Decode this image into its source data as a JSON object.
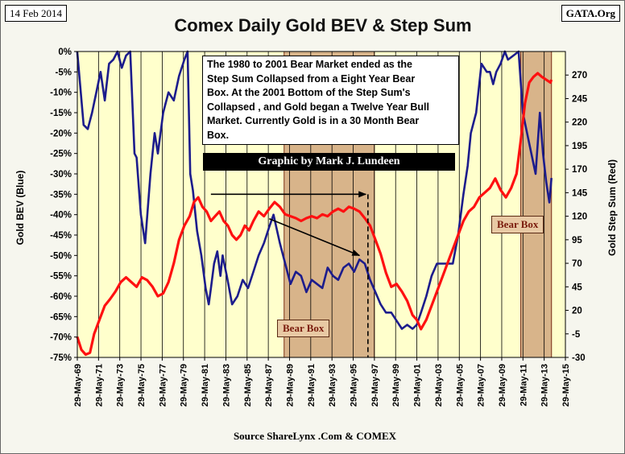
{
  "header": {
    "date": "14 Feb 2014",
    "site": "GATA.Org",
    "title": "Comex Daily Gold BEV &  Step Sum"
  },
  "footer": {
    "source": "Source ShareLynx .Com & COMEX"
  },
  "annotations": {
    "note_lines": [
      "The 1980 to 2001 Bear Market ended as the",
      "Step Sum Collapsed from a Eight Year Bear",
      "Box.  At the  2001 Bottom of the Step Sum's",
      "Collapsed , and Gold began a Twelve Year Bull",
      "Market.  Currently Gold is in a  30 Month Bear",
      "Box."
    ],
    "credit": "Graphic by Mark J. Lundeen",
    "bear_box_1": "Bear Box",
    "bear_box_2": "Bear Box"
  },
  "colors": {
    "bev_line": "#1c1c8c",
    "step_sum_line": "#ff1010",
    "plot_background": "#ffffcc",
    "bear_box_fill": "#d8b48a",
    "bear_box_border": "#7a2e16"
  },
  "chart_data": {
    "type": "line",
    "title": "Comex Daily Gold BEV &  Step Sum",
    "xlabel": "",
    "ylabel": "Gold BEV   (Blue)",
    "y2label": "Gold Step Sum   (Red)",
    "x_ticks": [
      "29-May-69",
      "29-May-71",
      "29-May-73",
      "29-May-75",
      "29-May-77",
      "29-May-79",
      "29-May-81",
      "29-May-83",
      "29-May-85",
      "29-May-87",
      "29-May-89",
      "29-May-91",
      "29-May-93",
      "29-May-95",
      "29-May-97",
      "29-May-99",
      "29-May-01",
      "29-May-03",
      "29-May-05",
      "29-May-07",
      "29-May-09",
      "29-May-11",
      "29-May-13",
      "29-May-15"
    ],
    "xlim": [
      1969.41,
      2015.41
    ],
    "ylim": [
      -75,
      0
    ],
    "y_ticks": [
      "0%",
      "-5%",
      "-10%",
      "-15%",
      "-20%",
      "-25%",
      "-30%",
      "-35%",
      "-40%",
      "-45%",
      "-50%",
      "-55%",
      "-60%",
      "-65%",
      "-70%",
      "-75%"
    ],
    "y2lim": [
      -30,
      295
    ],
    "y2_ticks": [
      270,
      245,
      220,
      195,
      170,
      145,
      120,
      95,
      70,
      45,
      20,
      -5,
      -30
    ],
    "grid": {
      "vertical": true,
      "horizontal": false
    },
    "shaded_regions": [
      {
        "label": "Bear Box",
        "x": [
          1988.9,
          1997.4
        ]
      },
      {
        "label": "Bear Box",
        "x": [
          2011.2,
          2014.1
        ]
      }
    ],
    "reference_lines": [
      {
        "style": "dashed",
        "x": 1996.8
      }
    ],
    "arrows": [
      {
        "from": [
          1982.0,
          -35
        ],
        "to": [
          1996.6,
          -35
        ]
      },
      {
        "from": [
          1987.5,
          -41
        ],
        "to": [
          1996.0,
          -50
        ]
      }
    ],
    "series": [
      {
        "name": "Gold BEV (Blue)",
        "axis": "left",
        "x": [
          1969.4,
          1970.0,
          1970.4,
          1970.8,
          1971.2,
          1971.6,
          1972.0,
          1972.4,
          1972.8,
          1973.2,
          1973.6,
          1974.0,
          1974.4,
          1974.8,
          1975.0,
          1975.4,
          1975.8,
          1976.3,
          1976.7,
          1977.0,
          1977.5,
          1978.0,
          1978.5,
          1979.0,
          1979.5,
          1979.8,
          1980.05,
          1980.3,
          1980.7,
          1981.1,
          1981.5,
          1981.8,
          1982.0,
          1982.3,
          1982.6,
          1982.9,
          1983.1,
          1983.5,
          1984.0,
          1984.5,
          1985.0,
          1985.5,
          1986.0,
          1986.5,
          1987.0,
          1987.5,
          1987.9,
          1988.5,
          1989.0,
          1989.5,
          1990.0,
          1990.5,
          1991.0,
          1991.5,
          1992.0,
          1992.5,
          1993.0,
          1993.5,
          1994.0,
          1994.5,
          1995.0,
          1995.5,
          1996.0,
          1996.5,
          1997.0,
          1997.5,
          1998.0,
          1998.5,
          1999.0,
          1999.5,
          2000.0,
          2000.5,
          2001.0,
          2001.4,
          2001.8,
          2002.3,
          2002.8,
          2003.3,
          2003.8,
          2004.3,
          2004.8,
          2005.3,
          2005.8,
          2006.2,
          2006.5,
          2007.0,
          2007.5,
          2008.0,
          2008.3,
          2008.6,
          2008.9,
          2009.3,
          2009.7,
          2010.0,
          2010.5,
          2011.0,
          2011.4,
          2011.8,
          2012.2,
          2012.6,
          2013.0,
          2013.3,
          2013.6,
          2013.9,
          2014.1
        ],
        "y": [
          0,
          -18,
          -19,
          -15,
          -10,
          -5,
          -12,
          -3,
          -2,
          0,
          -4,
          -1,
          0,
          -25,
          -26,
          -40,
          -47,
          -30,
          -20,
          -25,
          -15,
          -10,
          -12,
          -6,
          -2,
          0,
          -30,
          -34,
          -44,
          -50,
          -58,
          -62,
          -58,
          -52,
          -49,
          -55,
          -50,
          -55,
          -62,
          -60,
          -56,
          -58,
          -54,
          -50,
          -47,
          -43,
          -40,
          -47,
          -52,
          -57,
          -54,
          -55,
          -59,
          -56,
          -57,
          -58,
          -53,
          -55,
          -56,
          -53,
          -52,
          -54,
          -51,
          -52,
          -56,
          -59,
          -62,
          -64,
          -64,
          -66,
          -68,
          -67,
          -68,
          -67,
          -64,
          -60,
          -55,
          -52,
          -52,
          -52,
          -52,
          -45,
          -35,
          -28,
          -20,
          -15,
          -3,
          -5,
          -5,
          -8,
          -5,
          -3,
          0,
          -2,
          -1,
          0,
          -15,
          -20,
          -25,
          -30,
          -15,
          -25,
          -32,
          -37,
          -31
        ]
      },
      {
        "name": "Gold Step Sum (Red)",
        "axis": "right",
        "x": [
          1969.4,
          1969.8,
          1970.2,
          1970.6,
          1971.0,
          1971.5,
          1972.0,
          1972.5,
          1973.0,
          1973.5,
          1974.0,
          1974.5,
          1975.0,
          1975.5,
          1976.0,
          1976.5,
          1977.0,
          1977.5,
          1978.0,
          1978.5,
          1979.0,
          1979.5,
          1980.0,
          1980.4,
          1980.8,
          1981.2,
          1981.6,
          1982.0,
          1982.4,
          1982.8,
          1983.2,
          1983.6,
          1984.0,
          1984.4,
          1984.8,
          1985.2,
          1985.6,
          1986.0,
          1986.5,
          1987.0,
          1987.5,
          1988.0,
          1988.5,
          1989.0,
          1989.5,
          1990.0,
          1990.5,
          1991.0,
          1991.5,
          1992.0,
          1992.5,
          1993.0,
          1993.5,
          1994.0,
          1994.5,
          1995.0,
          1995.5,
          1996.0,
          1996.5,
          1997.0,
          1997.5,
          1998.0,
          1998.5,
          1999.0,
          1999.5,
          2000.0,
          2000.5,
          2001.0,
          2001.4,
          2001.8,
          2002.3,
          2002.8,
          2003.3,
          2003.8,
          2004.3,
          2004.8,
          2005.3,
          2005.8,
          2006.3,
          2006.8,
          2007.3,
          2007.8,
          2008.3,
          2008.8,
          2009.3,
          2009.8,
          2010.3,
          2010.8,
          2011.2,
          2011.6,
          2012.0,
          2012.4,
          2012.8,
          2013.2,
          2013.6,
          2014.0,
          2014.1
        ],
        "y": [
          -8,
          -22,
          -27,
          -25,
          -5,
          10,
          25,
          32,
          40,
          50,
          55,
          50,
          45,
          55,
          52,
          45,
          35,
          38,
          50,
          70,
          95,
          110,
          120,
          135,
          140,
          130,
          125,
          115,
          120,
          125,
          115,
          110,
          100,
          95,
          100,
          110,
          105,
          115,
          125,
          120,
          128,
          135,
          130,
          122,
          120,
          118,
          115,
          118,
          120,
          118,
          122,
          120,
          125,
          128,
          125,
          130,
          128,
          125,
          118,
          110,
          95,
          80,
          60,
          45,
          48,
          40,
          30,
          15,
          10,
          0,
          10,
          25,
          40,
          55,
          70,
          85,
          100,
          115,
          125,
          130,
          140,
          145,
          150,
          160,
          148,
          140,
          150,
          165,
          200,
          240,
          262,
          268,
          272,
          268,
          265,
          262,
          265
        ]
      }
    ]
  }
}
